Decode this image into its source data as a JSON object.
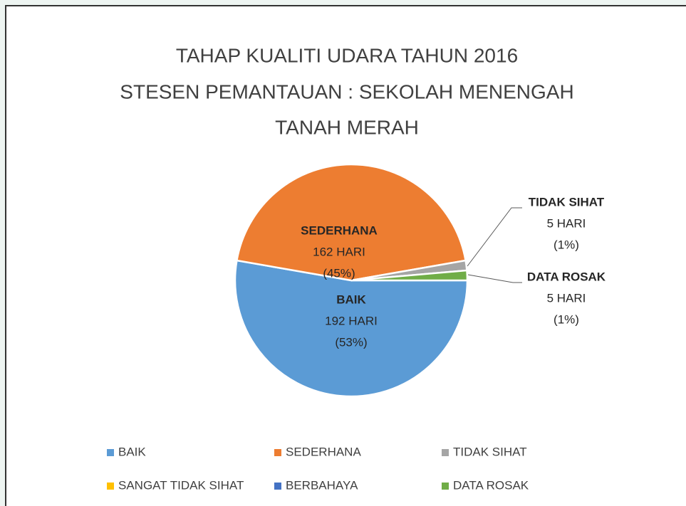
{
  "chart_data": {
    "type": "pie",
    "title": [
      "TAHAP KUALITI UDARA TAHUN 2016",
      "STESEN PEMANTAUAN : SEKOLAH MENENGAH",
      "TANAH MERAH"
    ],
    "categories": [
      "BAIK",
      "SEDERHANA",
      "TIDAK SIHAT",
      "SANGAT TIDAK SIHAT",
      "BERBAHAYA",
      "DATA ROSAK"
    ],
    "values": [
      192,
      162,
      5,
      0,
      0,
      5
    ],
    "value_labels": [
      "192 HARI",
      "162 HARI",
      "5 HARI",
      null,
      null,
      "5 HARI"
    ],
    "percent_labels": [
      "(53%)",
      "(45%)",
      "(1%)",
      null,
      null,
      "(1%)"
    ],
    "colors": [
      "#5b9bd5",
      "#ed7d31",
      "#a5a5a5",
      "#ffc000",
      "#4472c4",
      "#70ad47"
    ],
    "legend": "bottom"
  }
}
